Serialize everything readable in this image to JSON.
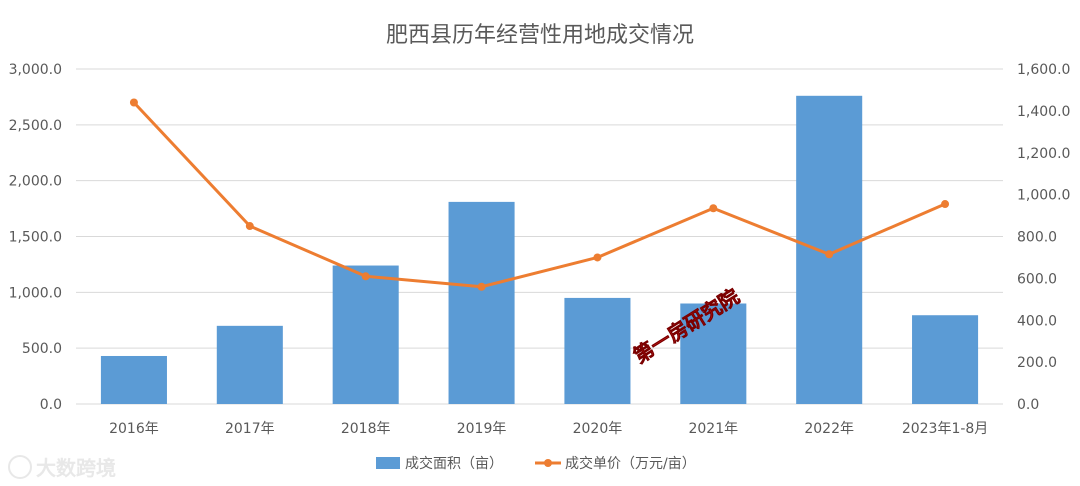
{
  "chart_data": {
    "type": "bar",
    "title": "肥西县历年经营性用地成交情况",
    "categories": [
      "2016年",
      "2017年",
      "2018年",
      "2019年",
      "2020年",
      "2021年",
      "2022年",
      "2023年1-8月"
    ],
    "series": [
      {
        "name": "成交面积（亩）",
        "type": "bar",
        "axis": "left",
        "color": "#5b9bd5",
        "values": [
          430,
          700,
          1240,
          1810,
          950,
          900,
          2760,
          795
        ]
      },
      {
        "name": "成交单价（万元/亩）",
        "type": "line",
        "axis": "right",
        "color": "#ed7d31",
        "values": [
          1440,
          850,
          610,
          560,
          700,
          935,
          715,
          955
        ]
      }
    ],
    "y_left": {
      "min": 0,
      "max": 3000,
      "ticks": [
        "0.0",
        "500.0",
        "1,000.0",
        "1,500.0",
        "2,000.0",
        "2,500.0",
        "3,000.0"
      ]
    },
    "y_right": {
      "min": 0,
      "max": 1600,
      "ticks": [
        "0.0",
        "200.0",
        "400.0",
        "600.0",
        "800.0",
        "1,000.0",
        "1,200.0",
        "1,400.0",
        "1,600.0"
      ]
    },
    "grid": true,
    "legend": "bottom"
  },
  "watermark": {
    "text": "第一房研究院"
  },
  "brand": {
    "text": "大数跨境",
    "icon": "brand-logo-icon"
  }
}
